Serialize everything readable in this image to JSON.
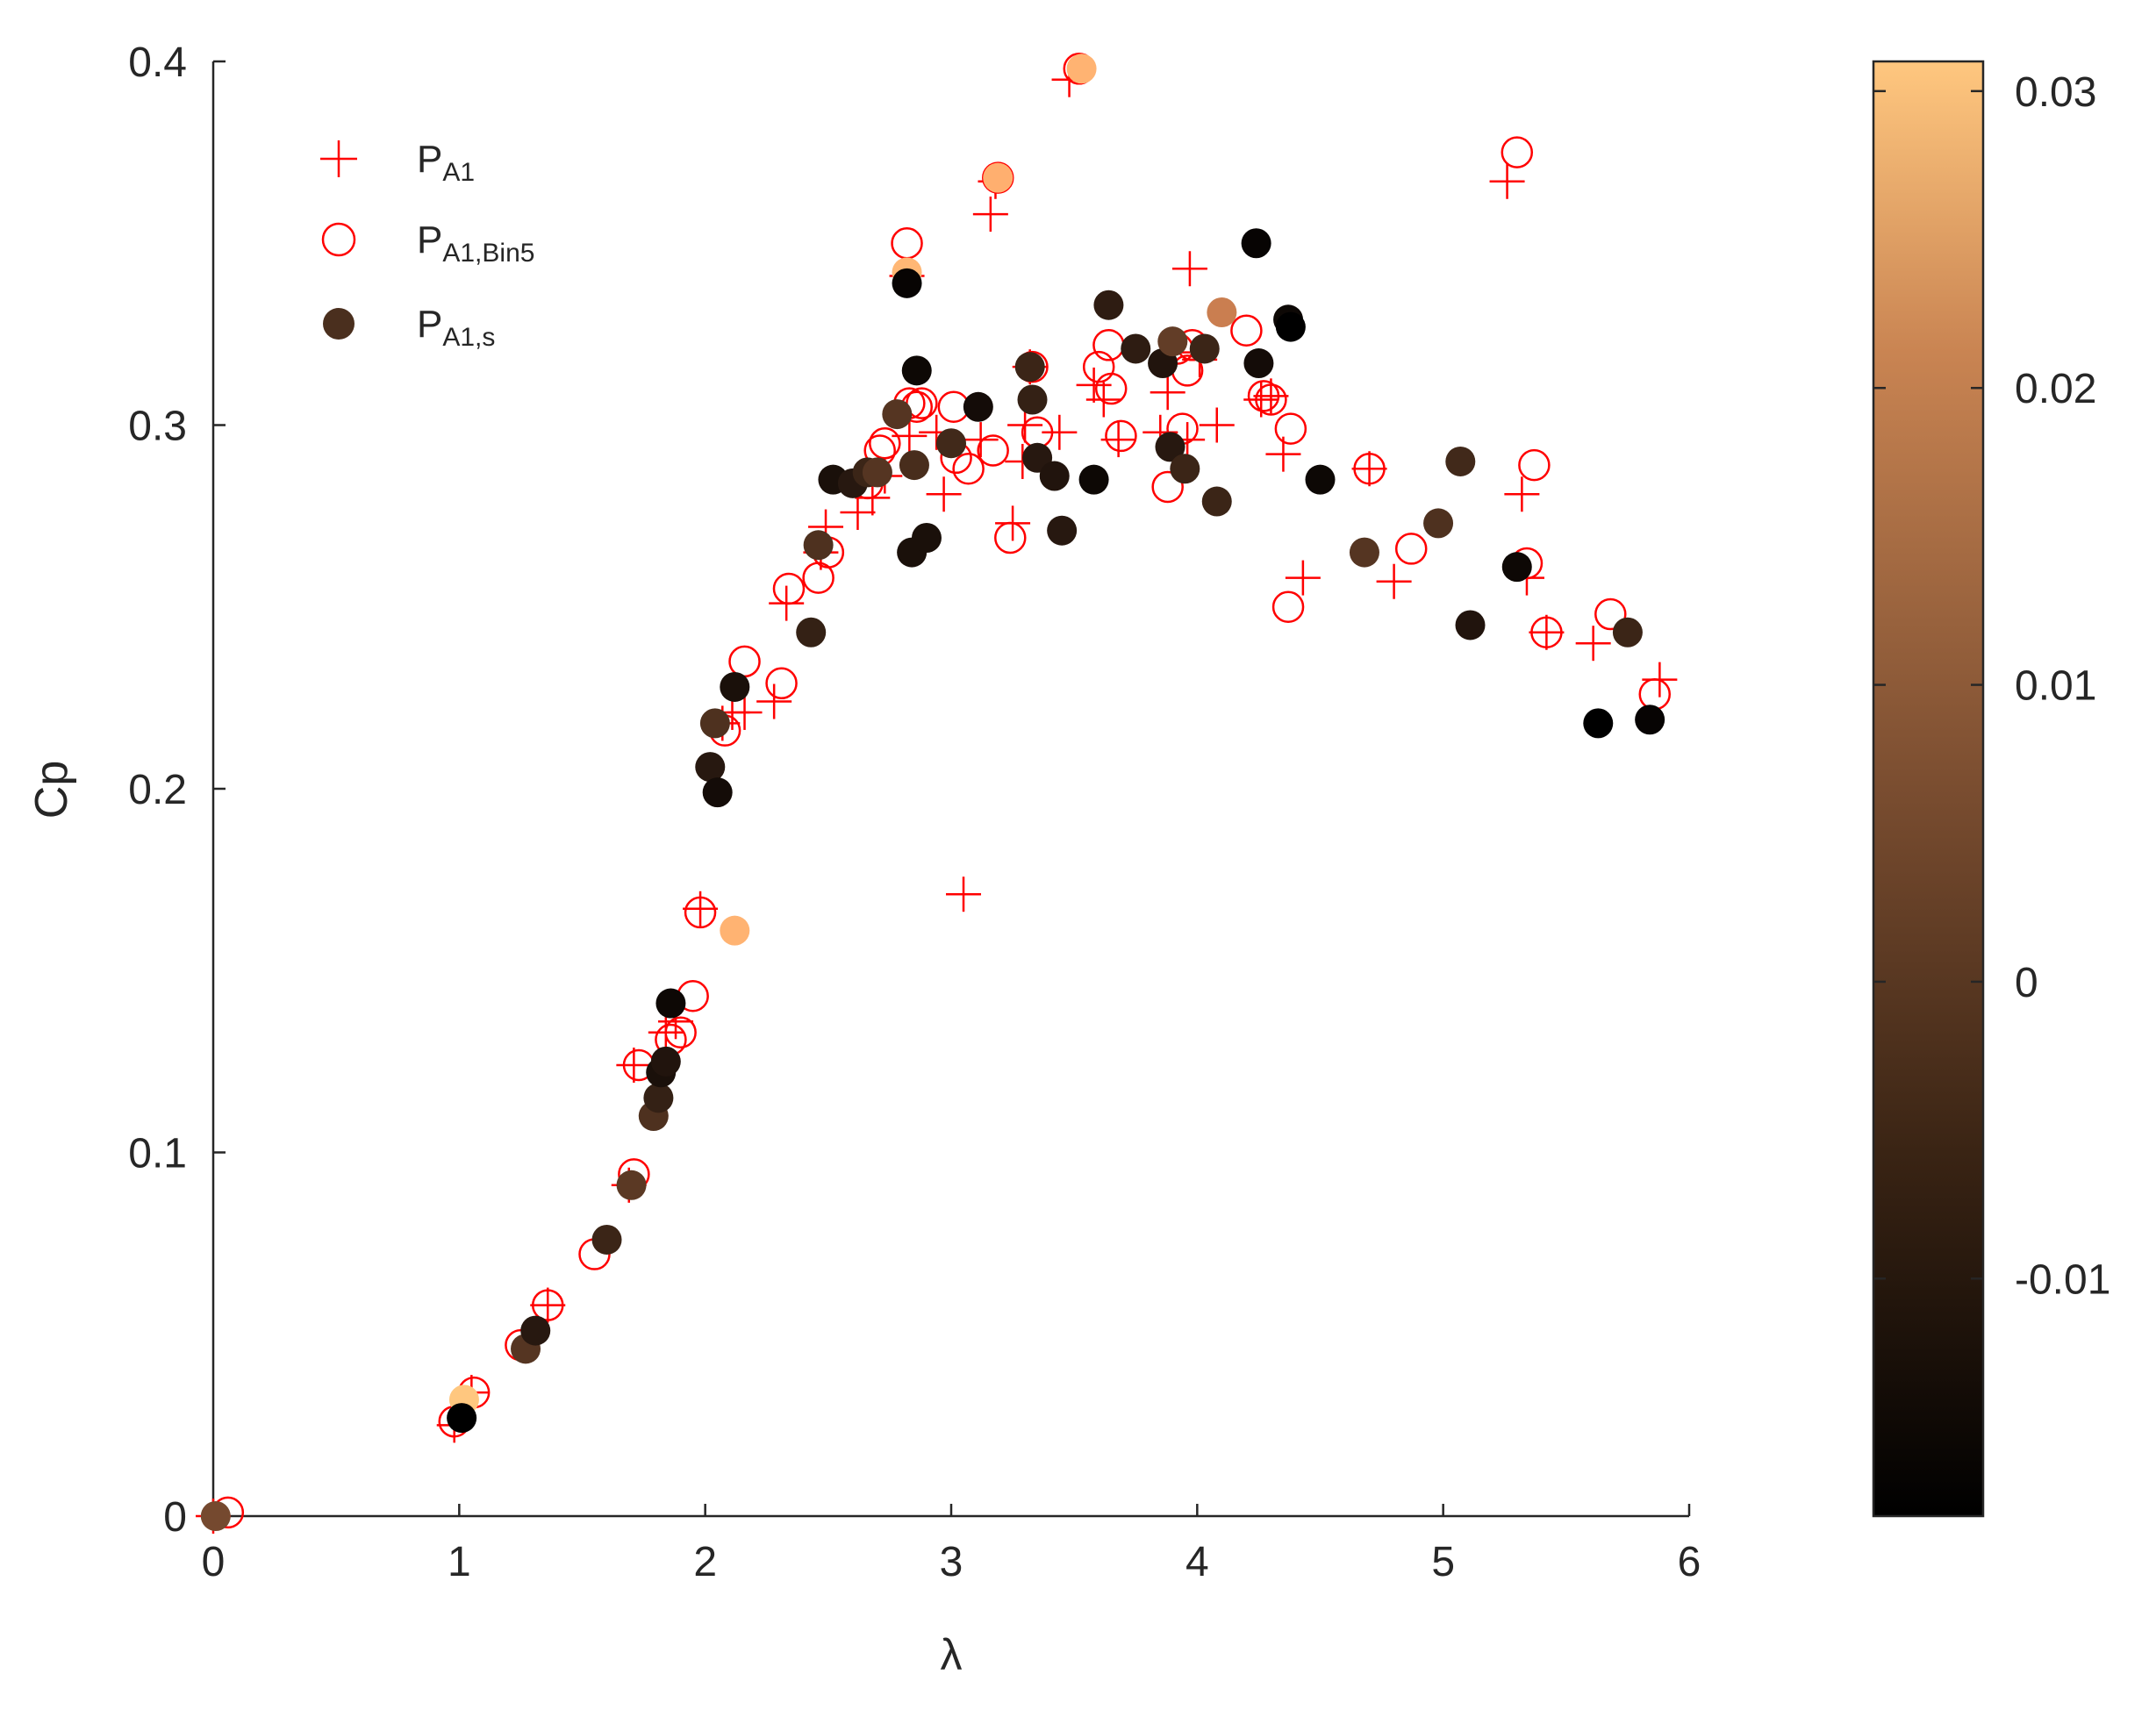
{
  "chart_data": {
    "type": "scatter",
    "xlabel": "λ",
    "ylabel": "Cp",
    "xlim": [
      0,
      6
    ],
    "ylim": [
      0,
      0.4
    ],
    "xticks": [
      "0",
      "1",
      "2",
      "3",
      "4",
      "5",
      "6"
    ],
    "yticks": [
      "0",
      "0.1",
      "0.2",
      "0.3",
      "0.4"
    ],
    "grid": false,
    "legend_position": "top-left",
    "legend": [
      {
        "base": "P",
        "sub": "A1",
        "marker": "plus",
        "color": "#ff0000"
      },
      {
        "base": "P",
        "sub": "A1,Bin5",
        "marker": "open-circle",
        "color": "#ff0000"
      },
      {
        "base": "P",
        "sub": "A1,s",
        "marker": "filled-circle",
        "color": "#4a2f1e"
      }
    ],
    "colorbar": {
      "colormap": "copper",
      "min": -0.018,
      "max": 0.031,
      "tick_values": [
        -0.01,
        0,
        0.01,
        0.02,
        0.03
      ],
      "tick_labels": [
        "-0.01",
        "0",
        "0.01",
        "0.02",
        "0.03"
      ],
      "colors": [
        "#000000",
        "#ffc77f"
      ]
    },
    "series": [
      {
        "name": "P_A1",
        "marker": "plus",
        "color": "#ff0000",
        "points": [
          [
            0,
            0
          ],
          [
            0.98,
            0.025
          ],
          [
            1.05,
            0.034
          ],
          [
            1.36,
            0.058
          ],
          [
            1.69,
            0.091
          ],
          [
            1.71,
            0.124
          ],
          [
            1.84,
            0.133
          ],
          [
            1.88,
            0.136
          ],
          [
            1.98,
            0.167
          ],
          [
            2.07,
            0.218
          ],
          [
            2.11,
            0.221
          ],
          [
            2.16,
            0.221
          ],
          [
            2.28,
            0.224
          ],
          [
            2.33,
            0.251
          ],
          [
            2.47,
            0.265
          ],
          [
            2.49,
            0.272
          ],
          [
            2.62,
            0.276
          ],
          [
            2.68,
            0.28
          ],
          [
            2.73,
            0.286
          ],
          [
            2.82,
            0.341
          ],
          [
            2.83,
            0.297
          ],
          [
            2.94,
            0.298
          ],
          [
            2.97,
            0.281
          ],
          [
            3.05,
            0.171
          ],
          [
            3.12,
            0.296
          ],
          [
            3.16,
            0.358
          ],
          [
            3.18,
            0.367
          ],
          [
            3.25,
            0.273
          ],
          [
            3.29,
            0.29
          ],
          [
            3.3,
            0.3
          ],
          [
            3.32,
            0.316
          ],
          [
            3.44,
            0.298
          ],
          [
            3.48,
            0.395
          ],
          [
            3.58,
            0.311
          ],
          [
            3.62,
            0.307
          ],
          [
            3.68,
            0.296
          ],
          [
            3.85,
            0.298
          ],
          [
            3.88,
            0.309
          ],
          [
            3.9,
            0.32
          ],
          [
            3.96,
            0.296
          ],
          [
            3.97,
            0.343
          ],
          [
            4.01,
            0.318
          ],
          [
            4.08,
            0.3
          ],
          [
            4.26,
            0.307
          ],
          [
            4.3,
            0.308
          ],
          [
            4.35,
            0.292
          ],
          [
            4.43,
            0.258
          ],
          [
            4.7,
            0.288
          ],
          [
            4.8,
            0.257
          ],
          [
            5.26,
            0.367
          ],
          [
            5.32,
            0.281
          ],
          [
            5.34,
            0.258
          ],
          [
            5.42,
            0.243
          ],
          [
            5.61,
            0.24
          ],
          [
            5.88,
            0.23
          ]
        ]
      },
      {
        "name": "P_A1,Bin5",
        "marker": "open-circle",
        "color": "#ff0000",
        "points": [
          [
            0.06,
            0.001
          ],
          [
            0.98,
            0.026
          ],
          [
            1.06,
            0.034
          ],
          [
            1.25,
            0.047
          ],
          [
            1.36,
            0.058
          ],
          [
            1.55,
            0.072
          ],
          [
            1.71,
            0.094
          ],
          [
            1.73,
            0.124
          ],
          [
            1.86,
            0.131
          ],
          [
            1.9,
            0.133
          ],
          [
            1.95,
            0.143
          ],
          [
            1.98,
            0.166
          ],
          [
            2.08,
            0.216
          ],
          [
            2.16,
            0.235
          ],
          [
            2.31,
            0.229
          ],
          [
            2.34,
            0.255
          ],
          [
            2.46,
            0.258
          ],
          [
            2.5,
            0.265
          ],
          [
            2.66,
            0.284
          ],
          [
            2.71,
            0.293
          ],
          [
            2.73,
            0.295
          ],
          [
            2.82,
            0.35
          ],
          [
            2.83,
            0.306
          ],
          [
            2.86,
            0.305
          ],
          [
            2.88,
            0.306
          ],
          [
            3.01,
            0.305
          ],
          [
            3.02,
            0.291
          ],
          [
            3.07,
            0.288
          ],
          [
            3.17,
            0.293
          ],
          [
            3.19,
            0.368
          ],
          [
            3.24,
            0.269
          ],
          [
            3.33,
            0.316
          ],
          [
            3.35,
            0.298
          ],
          [
            3.52,
            0.398
          ],
          [
            3.6,
            0.316
          ],
          [
            3.64,
            0.322
          ],
          [
            3.65,
            0.31
          ],
          [
            3.69,
            0.297
          ],
          [
            3.88,
            0.283
          ],
          [
            3.92,
            0.321
          ],
          [
            3.94,
            0.299
          ],
          [
            3.96,
            0.315
          ],
          [
            3.98,
            0.322
          ],
          [
            4.2,
            0.326
          ],
          [
            4.27,
            0.308
          ],
          [
            4.3,
            0.307
          ],
          [
            4.37,
            0.25
          ],
          [
            4.38,
            0.299
          ],
          [
            4.7,
            0.288
          ],
          [
            4.87,
            0.266
          ],
          [
            5.3,
            0.375
          ],
          [
            5.34,
            0.262
          ],
          [
            5.37,
            0.289
          ],
          [
            5.42,
            0.243
          ],
          [
            5.68,
            0.248
          ],
          [
            5.86,
            0.226
          ]
        ]
      },
      {
        "name": "P_A1,s",
        "marker": "filled-circle",
        "points": [
          [
            0.01,
            0,
            0
          ],
          [
            1.02,
            0.032,
            0.031
          ],
          [
            1.01,
            0.027,
            -0.018
          ],
          [
            1.27,
            0.046,
            -0.005
          ],
          [
            1.31,
            0.051,
            -0.012
          ],
          [
            1.6,
            0.076,
            -0.009
          ],
          [
            1.7,
            0.091,
            -0.004
          ],
          [
            1.79,
            0.11,
            -0.006
          ],
          [
            1.81,
            0.115,
            -0.01
          ],
          [
            1.82,
            0.122,
            -0.014
          ],
          [
            1.84,
            0.125,
            -0.013
          ],
          [
            1.86,
            0.141,
            -0.016
          ],
          [
            2.02,
            0.206,
            -0.012
          ],
          [
            2.04,
            0.218,
            -0.006
          ],
          [
            2.05,
            0.199,
            -0.015
          ],
          [
            2.12,
            0.228,
            -0.014
          ],
          [
            2.12,
            0.161,
            0.026
          ],
          [
            2.43,
            0.243,
            -0.01
          ],
          [
            2.46,
            0.267,
            -0.006
          ],
          [
            2.52,
            0.285,
            -0.014
          ],
          [
            2.6,
            0.284,
            -0.012
          ],
          [
            2.66,
            0.287,
            -0.009
          ],
          [
            2.7,
            0.287,
            -0.005
          ],
          [
            2.78,
            0.303,
            -0.005
          ],
          [
            2.82,
            0.342,
            0.027
          ],
          [
            2.82,
            0.339,
            -0.017
          ],
          [
            2.84,
            0.265,
            -0.014
          ],
          [
            2.85,
            0.289,
            -0.007
          ],
          [
            2.86,
            0.315,
            -0.016
          ],
          [
            2.9,
            0.269,
            -0.014
          ],
          [
            3.0,
            0.295,
            -0.008
          ],
          [
            3.11,
            0.305,
            -0.015
          ],
          [
            3.19,
            0.368,
            0.025
          ],
          [
            3.32,
            0.316,
            -0.009
          ],
          [
            3.33,
            0.307,
            -0.01
          ],
          [
            3.35,
            0.291,
            -0.012
          ],
          [
            3.42,
            0.286,
            -0.013
          ],
          [
            3.45,
            0.271,
            -0.012
          ],
          [
            3.53,
            0.398,
            0.026
          ],
          [
            3.58,
            0.285,
            -0.016
          ],
          [
            3.64,
            0.333,
            -0.011
          ],
          [
            3.75,
            0.321,
            -0.011
          ],
          [
            3.86,
            0.317,
            -0.013
          ],
          [
            3.89,
            0.294,
            -0.012
          ],
          [
            3.9,
            0.323,
            -0.003
          ],
          [
            3.95,
            0.288,
            -0.009
          ],
          [
            4.03,
            0.321,
            -0.009
          ],
          [
            4.08,
            0.279,
            -0.009
          ],
          [
            4.1,
            0.331,
            0.013
          ],
          [
            4.24,
            0.35,
            -0.017
          ],
          [
            4.25,
            0.317,
            -0.015
          ],
          [
            4.37,
            0.329,
            -0.016
          ],
          [
            4.38,
            0.327,
            -0.018
          ],
          [
            4.5,
            0.285,
            -0.016
          ],
          [
            4.68,
            0.265,
            -0.005
          ],
          [
            4.98,
            0.273,
            -0.006
          ],
          [
            5.07,
            0.29,
            -0.008
          ],
          [
            5.11,
            0.245,
            -0.013
          ],
          [
            5.3,
            0.261,
            -0.016
          ],
          [
            5.63,
            0.218,
            -0.018
          ],
          [
            5.75,
            0.243,
            -0.009
          ],
          [
            5.84,
            0.219,
            -0.017
          ]
        ]
      }
    ]
  }
}
